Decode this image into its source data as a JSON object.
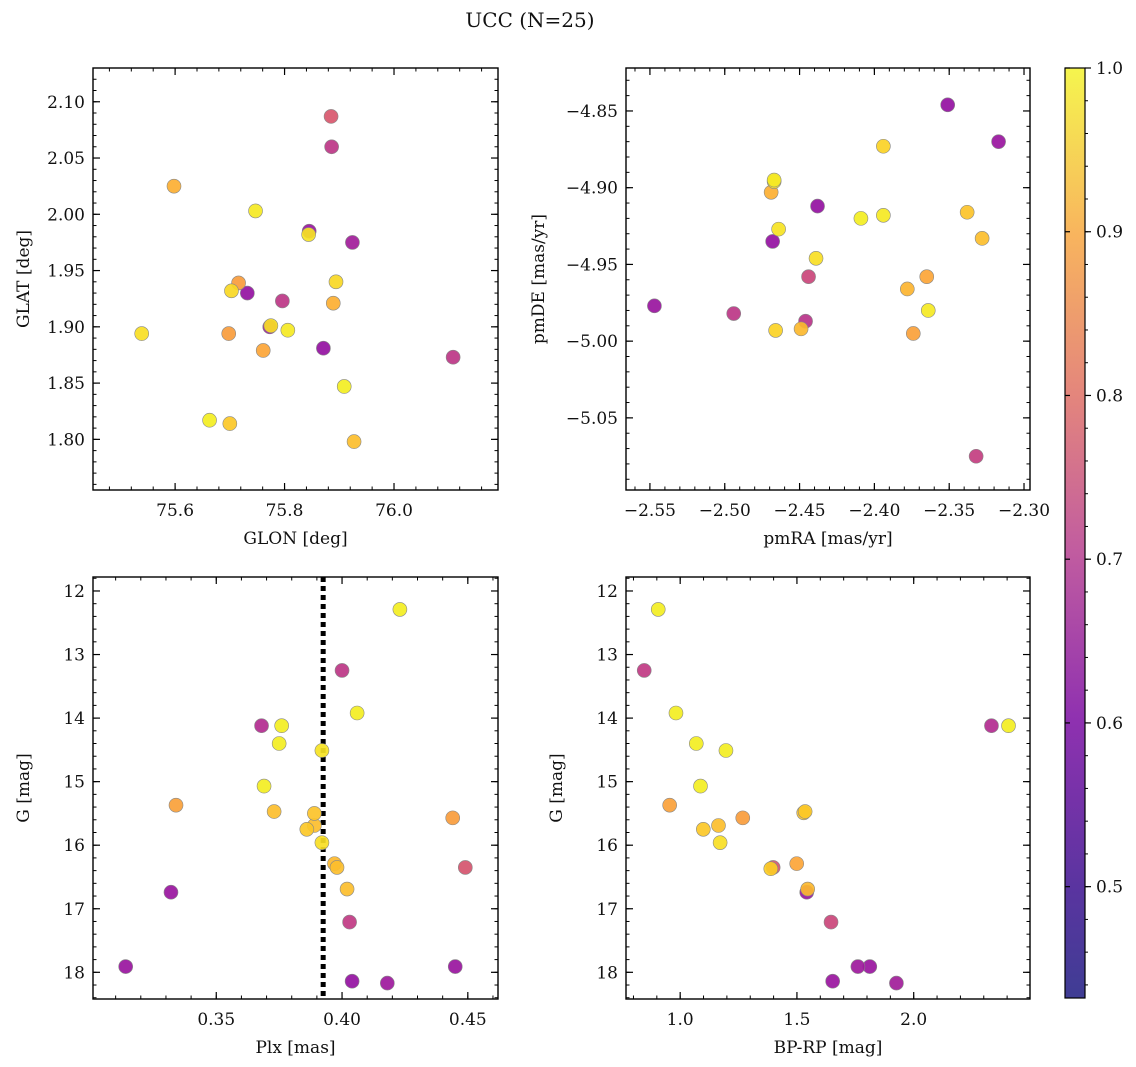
{
  "figure": {
    "suptitle": "UCC (N=25)"
  },
  "colorbar": {
    "colormap": "plasma",
    "range": [
      0.432,
      1.0
    ],
    "tick_values": [
      0.5,
      0.6,
      0.7,
      0.8,
      0.9,
      1.0
    ],
    "tick_labels": [
      "0.5",
      "0.6",
      "0.7",
      "0.8",
      "0.9",
      "1.0"
    ]
  },
  "chart_data": [
    {
      "type": "scatter",
      "xlabel": "GLON [deg]",
      "ylabel": "GLAT [deg]",
      "xlim": [
        75.45,
        76.19
      ],
      "ylim": [
        1.755,
        2.13
      ],
      "xticks": [
        75.6,
        75.8,
        76.0
      ],
      "xtick_labels": [
        "75.6",
        "75.8",
        "76.0"
      ],
      "yticks": [
        1.8,
        1.85,
        1.9,
        1.95,
        2.0,
        2.05,
        2.1
      ],
      "ytick_labels": [
        "1.80",
        "1.85",
        "1.90",
        "1.95",
        "2.00",
        "2.05",
        "2.10"
      ],
      "x": [
        75.885,
        75.886,
        75.598,
        75.747,
        75.845,
        75.844,
        75.924,
        75.716,
        75.703,
        75.732,
        75.894,
        75.796,
        75.889,
        75.773,
        75.775,
        75.806,
        75.698,
        75.539,
        75.871,
        75.761,
        76.108,
        75.909,
        75.663,
        75.7,
        75.927
      ],
      "y": [
        2.087,
        2.06,
        2.025,
        2.003,
        1.985,
        1.982,
        1.975,
        1.939,
        1.932,
        1.93,
        1.94,
        1.923,
        1.921,
        1.9,
        1.901,
        1.897,
        1.894,
        1.894,
        1.881,
        1.879,
        1.873,
        1.847,
        1.817,
        1.814,
        1.798
      ],
      "c": [
        0.65,
        0.56,
        0.86,
        0.97,
        0.47,
        0.96,
        0.49,
        0.82,
        0.94,
        0.46,
        0.94,
        0.56,
        0.86,
        0.48,
        0.95,
        0.97,
        0.82,
        0.95,
        0.46,
        0.84,
        0.56,
        0.98,
        0.98,
        0.91,
        0.89
      ]
    },
    {
      "type": "scatter",
      "xlabel": "pmRA [mas/yr]",
      "ylabel": "pmDE [mas/yr]",
      "xlim": [
        -2.566,
        -2.296
      ],
      "ylim": [
        -5.097,
        -4.822
      ],
      "xticks": [
        -2.55,
        -2.5,
        -2.45,
        -2.4,
        -2.35,
        -2.3
      ],
      "xtick_labels": [
        "−2.55",
        "−2.50",
        "−2.45",
        "−2.40",
        "−2.35",
        "−2.30"
      ],
      "yticks": [
        -5.05,
        -5.0,
        -4.95,
        -4.9,
        -4.85
      ],
      "ytick_labels": [
        "−5.05",
        "−5.00",
        "−4.95",
        "−4.90",
        "−4.85"
      ],
      "x": [
        -2.351,
        -2.317,
        -2.394,
        -2.467,
        -2.469,
        -2.438,
        -2.338,
        -2.409,
        -2.394,
        -2.464,
        -2.468,
        -2.328,
        -2.439,
        -2.444,
        -2.365,
        -2.378,
        -2.364,
        -2.547,
        -2.494,
        -2.446,
        -2.374,
        -2.466,
        -2.449,
        -2.332,
        -2.467
      ],
      "y": [
        -4.846,
        -4.87,
        -4.873,
        -4.895,
        -4.903,
        -4.912,
        -4.916,
        -4.92,
        -4.918,
        -4.927,
        -4.935,
        -4.933,
        -4.946,
        -4.958,
        -4.958,
        -4.966,
        -4.98,
        -4.977,
        -4.982,
        -4.987,
        -4.995,
        -4.993,
        -4.992,
        -5.075,
        -4.896
      ],
      "c": [
        0.46,
        0.47,
        0.93,
        0.97,
        0.86,
        0.46,
        0.9,
        0.98,
        0.97,
        0.96,
        0.46,
        0.89,
        0.95,
        0.6,
        0.84,
        0.87,
        0.97,
        0.47,
        0.56,
        0.55,
        0.83,
        0.93,
        0.88,
        0.58,
        0.96
      ]
    },
    {
      "type": "scatter",
      "xlabel": "Plx [mas]",
      "ylabel": "G [mag]",
      "xlim": [
        0.301,
        0.462
      ],
      "ylim": [
        18.42,
        11.78
      ],
      "y_inverted": true,
      "vline_x": 0.3925,
      "xticks": [
        0.35,
        0.4,
        0.45
      ],
      "xtick_labels": [
        "0.35",
        "0.40",
        "0.45"
      ],
      "yticks": [
        12,
        13,
        14,
        15,
        16,
        17,
        18
      ],
      "ytick_labels": [
        "12",
        "13",
        "14",
        "15",
        "16",
        "17",
        "18"
      ],
      "x": [
        0.423,
        0.4,
        0.406,
        0.368,
        0.376,
        0.375,
        0.392,
        0.369,
        0.334,
        0.373,
        0.389,
        0.389,
        0.386,
        0.392,
        0.397,
        0.398,
        0.444,
        0.449,
        0.402,
        0.332,
        0.403,
        0.314,
        0.404,
        0.418,
        0.445
      ],
      "y": [
        12.29,
        13.25,
        13.92,
        14.12,
        14.12,
        14.4,
        14.51,
        15.07,
        15.37,
        15.47,
        15.5,
        15.69,
        15.75,
        15.96,
        16.29,
        16.35,
        15.57,
        16.35,
        16.69,
        16.74,
        17.21,
        17.91,
        18.14,
        18.17,
        17.91
      ],
      "c": [
        0.98,
        0.56,
        0.98,
        0.53,
        0.98,
        0.98,
        0.96,
        0.98,
        0.83,
        0.89,
        0.9,
        0.89,
        0.91,
        0.95,
        0.88,
        0.89,
        0.82,
        0.64,
        0.89,
        0.47,
        0.57,
        0.47,
        0.46,
        0.48,
        0.47
      ]
    },
    {
      "type": "scatter",
      "xlabel": "BP-RP [mag]",
      "ylabel": "G [mag]",
      "xlim": [
        0.768,
        2.498
      ],
      "ylim": [
        18.42,
        11.78
      ],
      "y_inverted": true,
      "xticks": [
        1.0,
        1.5,
        2.0
      ],
      "xtick_labels": [
        "1.0",
        "1.5",
        "2.0"
      ],
      "yticks": [
        12,
        13,
        14,
        15,
        16,
        17,
        18
      ],
      "ytick_labels": [
        "12",
        "13",
        "14",
        "15",
        "16",
        "17",
        "18"
      ],
      "x": [
        0.906,
        0.846,
        0.982,
        1.069,
        1.196,
        1.087,
        0.955,
        1.164,
        1.529,
        1.535,
        1.099,
        1.171,
        1.268,
        1.398,
        1.499,
        1.388,
        1.542,
        1.546,
        1.646,
        1.653,
        1.761,
        1.812,
        1.926,
        2.333,
        2.406
      ],
      "y": [
        12.29,
        13.25,
        13.92,
        14.4,
        14.51,
        15.07,
        15.37,
        15.69,
        15.49,
        15.47,
        15.75,
        15.96,
        15.57,
        16.35,
        16.29,
        16.37,
        16.74,
        16.69,
        17.21,
        18.14,
        17.91,
        17.91,
        18.17,
        14.12,
        14.12
      ],
      "c": [
        0.98,
        0.57,
        0.98,
        0.98,
        0.98,
        0.98,
        0.83,
        0.89,
        0.9,
        0.91,
        0.91,
        0.95,
        0.82,
        0.64,
        0.84,
        0.92,
        0.47,
        0.88,
        0.6,
        0.47,
        0.48,
        0.47,
        0.49,
        0.53,
        0.98
      ]
    }
  ]
}
